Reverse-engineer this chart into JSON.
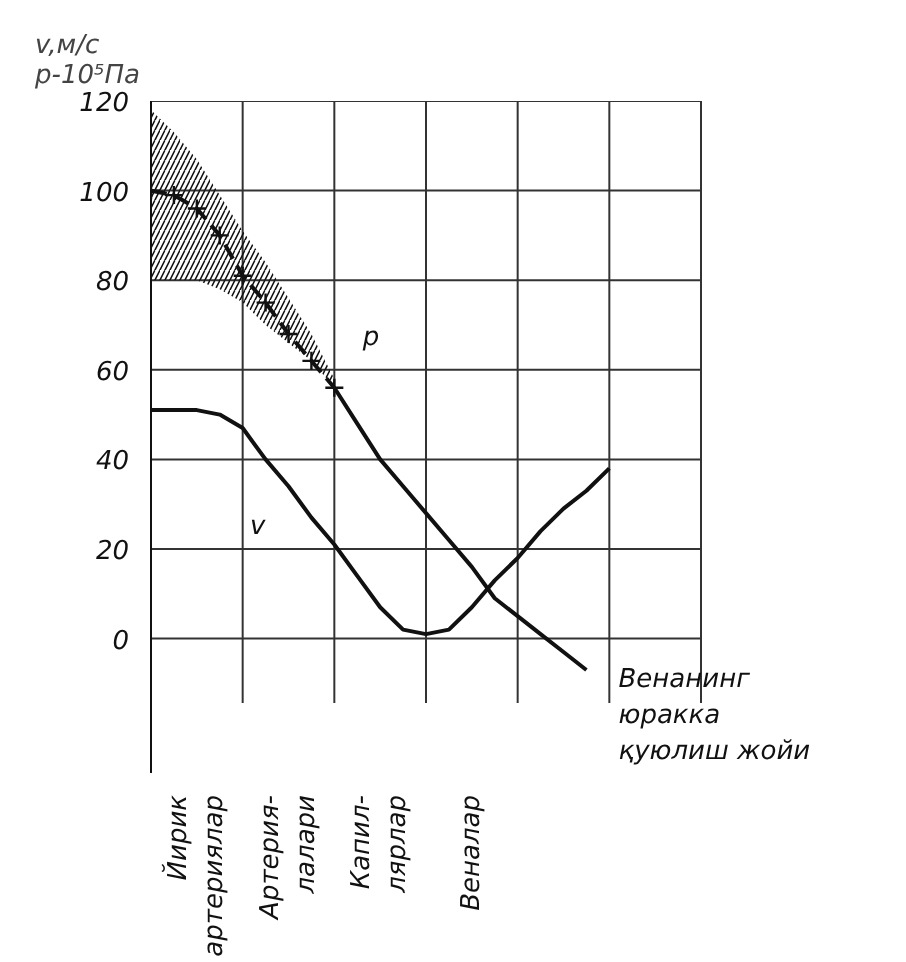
{
  "chart_data": {
    "type": "line",
    "ylabel": "v,м/с\np-10⁵Па",
    "categories": [
      null,
      null,
      "Йирик\nартериялар",
      null,
      null,
      null,
      "Артерия-\nлалари",
      null,
      null,
      null,
      "Капил-\nлярлар",
      null,
      null,
      null,
      "Веналар",
      null,
      null,
      null,
      null,
      null,
      null,
      null,
      null,
      null,
      null
    ],
    "ylim": [
      -30,
      120
    ],
    "yticks": [
      0,
      20,
      40,
      60,
      80,
      100,
      120
    ],
    "grid": true,
    "series": [
      {
        "color": "#111111",
        "line_style": "dashed",
        "marker": "cross",
        "values": [
          100,
          99,
          96,
          90,
          81,
          75,
          68,
          62,
          56,
          null,
          null,
          null,
          null,
          null,
          null,
          null,
          null,
          null,
          null,
          null,
          null,
          null,
          null,
          null,
          null
        ],
        "lower": [
          80,
          80,
          80,
          78,
          75,
          70,
          66,
          62,
          56,
          null,
          null,
          null,
          null,
          null,
          null,
          null,
          null,
          null,
          null,
          null,
          null,
          null,
          null,
          null,
          null
        ],
        "upper": [
          118,
          113,
          107,
          99,
          91,
          84,
          76,
          68,
          58,
          null,
          null,
          null,
          null,
          null,
          null,
          null,
          null,
          null,
          null,
          null,
          null,
          null,
          null,
          null,
          null
        ]
      },
      {
        "color": "#111111",
        "line_style": "solid",
        "values": [
          null,
          null,
          null,
          null,
          null,
          null,
          null,
          null,
          56,
          48,
          40,
          34,
          28,
          22,
          16,
          9,
          5,
          1,
          -3,
          -7,
          null,
          null,
          null,
          null,
          null
        ]
      },
      {
        "color": "#111111",
        "line_style": "solid",
        "values": [
          51,
          51,
          51,
          50,
          47,
          40,
          34,
          27,
          21,
          14,
          7,
          2,
          1,
          2,
          7,
          13,
          18,
          24,
          29,
          33,
          38,
          null,
          null,
          null,
          null
        ]
      }
    ],
    "annotations": [
      "p",
      "v",
      "Венанинг\nюракка\nқуюлиш жойи"
    ]
  }
}
